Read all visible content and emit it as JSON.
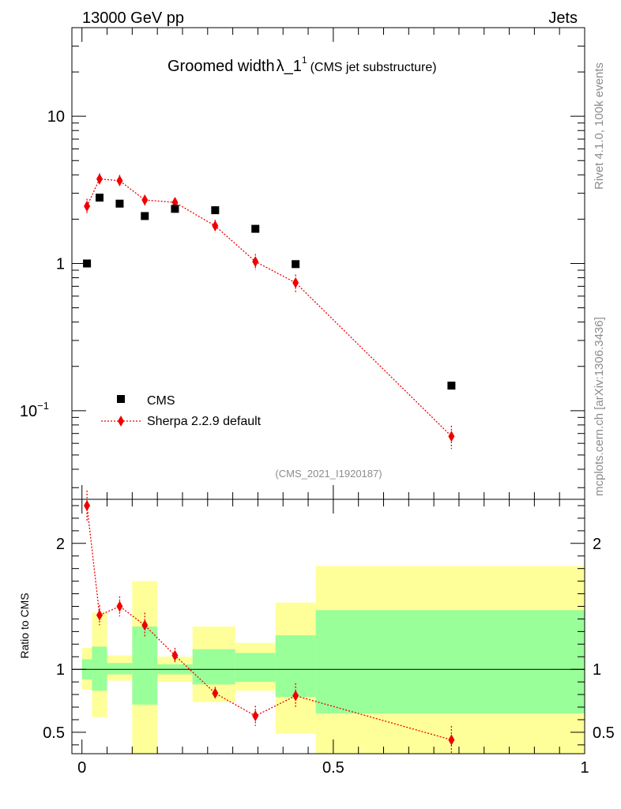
{
  "header": {
    "left": "13000 GeV pp",
    "right": "Jets"
  },
  "title": {
    "main": "Groomed width",
    "symbol": "λ_1",
    "sup": "1",
    "sub": "(CMS jet substructure)"
  },
  "side_labels": {
    "rivet": "Rivet 4.1.0,  100k events",
    "mcplots": "mcplots.cern.ch [arXiv:1306.3436]"
  },
  "analysis_id": "(CMS_2021_I1920187)",
  "colors": {
    "data": "#000000",
    "mc": "#ee0000",
    "band_inner": "#99ff99",
    "band_outer": "#ffff99"
  },
  "chart_data": [
    {
      "panel": "main",
      "type": "scatter",
      "y_scale": "log",
      "xlim": [
        -0.02,
        1.0
      ],
      "ylim": [
        0.025,
        40
      ],
      "y_ticks": [
        {
          "value": 10,
          "label": "10"
        },
        {
          "value": 1,
          "label": "1"
        },
        {
          "value": 0.1,
          "label": "10",
          "sup": "−1"
        }
      ],
      "legend": {
        "position": "lower-left",
        "entries": [
          "CMS",
          "Sherpa 2.2.9 default"
        ]
      },
      "series": [
        {
          "name": "CMS",
          "marker": "square",
          "x": [
            0.01,
            0.035,
            0.075,
            0.125,
            0.185,
            0.265,
            0.345,
            0.425,
            0.735
          ],
          "y": [
            1.0,
            2.8,
            2.55,
            2.1,
            2.35,
            2.3,
            1.72,
            0.99,
            0.148
          ]
        },
        {
          "name": "Sherpa 2.2.9 default",
          "marker": "diamond",
          "line": "dotted",
          "x": [
            0.01,
            0.035,
            0.075,
            0.125,
            0.185,
            0.265,
            0.345,
            0.425,
            0.735
          ],
          "y": [
            2.45,
            3.75,
            3.65,
            2.7,
            2.6,
            1.8,
            1.03,
            0.74,
            0.067
          ],
          "yerr": [
            0.3,
            0.35,
            0.35,
            0.22,
            0.2,
            0.18,
            0.13,
            0.1,
            0.012
          ]
        }
      ]
    },
    {
      "panel": "ratio",
      "type": "line",
      "ylabel": "Ratio to CMS",
      "xlim": [
        -0.02,
        1.0
      ],
      "ylim": [
        0.33,
        2.35
      ],
      "x_ticks": [
        {
          "value": 0,
          "label": "0"
        },
        {
          "value": 0.5,
          "label": "0.5"
        },
        {
          "value": 1,
          "label": "1"
        }
      ],
      "y_ticks": [
        {
          "value": 2,
          "label": "2"
        },
        {
          "value": 1,
          "label": "1"
        },
        {
          "value": 0.5,
          "label": "0.5"
        }
      ],
      "bands": [
        {
          "x0": 0.0,
          "x1": 0.02,
          "inner": [
            0.92,
            1.08
          ],
          "outer": [
            0.84,
            1.17
          ]
        },
        {
          "x0": 0.02,
          "x1": 0.05,
          "inner": [
            0.83,
            1.18
          ],
          "outer": [
            0.62,
            1.45
          ]
        },
        {
          "x0": 0.05,
          "x1": 0.1,
          "inner": [
            0.96,
            1.05
          ],
          "outer": [
            0.91,
            1.11
          ]
        },
        {
          "x0": 0.1,
          "x1": 0.15,
          "inner": [
            0.72,
            1.34
          ],
          "outer": [
            0.33,
            1.7
          ]
        },
        {
          "x0": 0.15,
          "x1": 0.22,
          "inner": [
            0.96,
            1.04
          ],
          "outer": [
            0.9,
            1.1
          ]
        },
        {
          "x0": 0.22,
          "x1": 0.305,
          "inner": [
            0.88,
            1.16
          ],
          "outer": [
            0.74,
            1.34
          ]
        },
        {
          "x0": 0.305,
          "x1": 0.385,
          "inner": [
            0.9,
            1.13
          ],
          "outer": [
            0.83,
            1.21
          ]
        },
        {
          "x0": 0.385,
          "x1": 0.465,
          "inner": [
            0.78,
            1.27
          ],
          "outer": [
            0.49,
            1.53
          ]
        },
        {
          "x0": 0.465,
          "x1": 1.0,
          "inner": [
            0.65,
            1.47
          ],
          "outer": [
            0.33,
            1.82
          ]
        }
      ],
      "series": [
        {
          "name": "Sherpa 2.2.9 default / CMS",
          "x": [
            0.01,
            0.035,
            0.075,
            0.125,
            0.185,
            0.265,
            0.345,
            0.425,
            0.735
          ],
          "y": [
            2.3,
            1.43,
            1.5,
            1.35,
            1.11,
            0.81,
            0.63,
            0.79,
            0.44
          ],
          "yerr": [
            0.12,
            0.08,
            0.08,
            0.1,
            0.06,
            0.05,
            0.08,
            0.1,
            0.11
          ]
        }
      ]
    }
  ]
}
